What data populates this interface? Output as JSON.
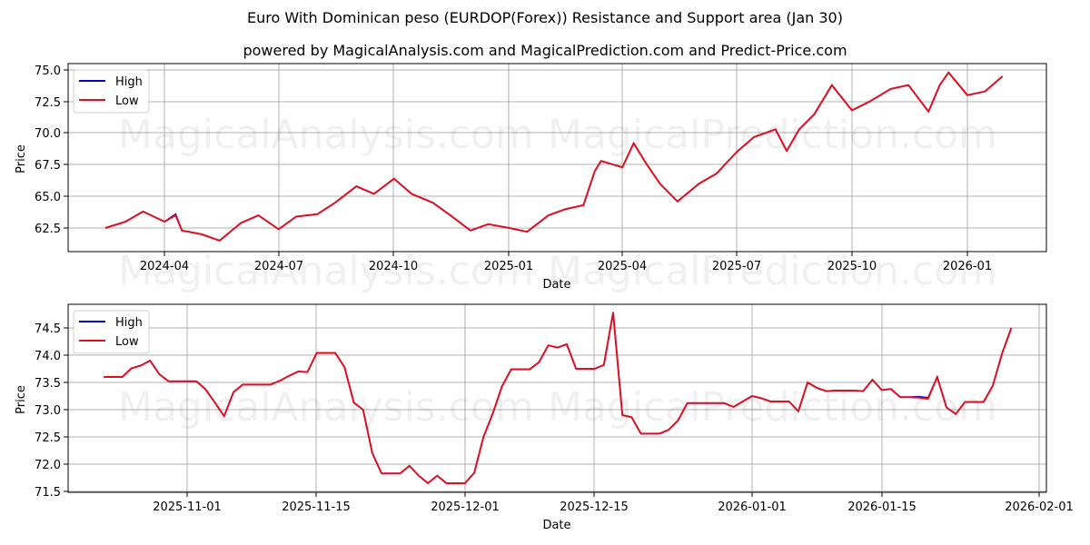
{
  "header": {
    "title": "Euro With Dominican peso (EURDOP(Forex)) Resistance and Support area (Jan 30)",
    "subtitle": "powered by MagicalAnalysis.com and MagicalPrediction.com and Predict-Price.com"
  },
  "watermark": {
    "left": "MagicalAnalysis.com",
    "right": "MagicalPrediction.com"
  },
  "colors": {
    "high": "#0000cc",
    "low": "#dd1122",
    "grid": "#b0b0b0"
  },
  "chart_data": [
    {
      "type": "line",
      "title": "Euro With Dominican peso (EURDOP(Forex)) Resistance and Support area (Jan 30)",
      "xlabel": "Date",
      "ylabel": "Price",
      "ylim": [
        60.6,
        75.5
      ],
      "grid": true,
      "legend_position": "upper left",
      "legend": [
        "High",
        "Low"
      ],
      "x_ticks": [
        "2024-04",
        "2024-07",
        "2024-10",
        "2025-01",
        "2025-04",
        "2025-07",
        "2025-10",
        "2026-01"
      ],
      "y_ticks": [
        "62.5",
        "65.0",
        "67.5",
        "70.0",
        "72.5",
        "75.0"
      ],
      "x": [
        "2024-02-14",
        "2024-03-01",
        "2024-03-15",
        "2024-04-01",
        "2024-04-10",
        "2024-04-15",
        "2024-05-01",
        "2024-05-15",
        "2024-06-01",
        "2024-06-15",
        "2024-07-01",
        "2024-07-15",
        "2024-08-01",
        "2024-08-15",
        "2024-09-01",
        "2024-09-15",
        "2024-10-01",
        "2024-10-15",
        "2024-11-01",
        "2024-11-15",
        "2024-12-01",
        "2024-12-15",
        "2025-01-01",
        "2025-01-15",
        "2025-02-01",
        "2025-02-15",
        "2025-03-01",
        "2025-03-10",
        "2025-03-15",
        "2025-04-01",
        "2025-04-10",
        "2025-04-20",
        "2025-05-01",
        "2025-05-15",
        "2025-06-01",
        "2025-06-15",
        "2025-07-01",
        "2025-07-15",
        "2025-08-01",
        "2025-08-10",
        "2025-08-20",
        "2025-09-01",
        "2025-09-15",
        "2025-10-01",
        "2025-10-15",
        "2025-11-01",
        "2025-11-15",
        "2025-12-01",
        "2025-12-10",
        "2025-12-17",
        "2026-01-01",
        "2026-01-15",
        "2026-01-29"
      ],
      "series": [
        {
          "name": "High",
          "values": [
            62.5,
            63.0,
            63.8,
            63.0,
            63.6,
            62.3,
            62.0,
            61.5,
            62.9,
            63.5,
            62.4,
            63.4,
            63.6,
            64.5,
            65.8,
            65.2,
            66.4,
            65.2,
            64.5,
            63.5,
            62.3,
            62.8,
            62.5,
            62.2,
            63.5,
            64.0,
            64.3,
            67.0,
            67.8,
            67.3,
            69.2,
            67.6,
            66.0,
            64.6,
            66.0,
            66.8,
            68.5,
            69.7,
            70.3,
            68.6,
            70.3,
            71.5,
            73.8,
            71.8,
            72.5,
            73.5,
            73.8,
            71.7,
            73.8,
            74.8,
            73.0,
            73.3,
            74.5
          ]
        },
        {
          "name": "Low",
          "values": [
            62.5,
            63.0,
            63.8,
            63.0,
            63.5,
            62.3,
            62.0,
            61.5,
            62.9,
            63.5,
            62.4,
            63.4,
            63.6,
            64.5,
            65.8,
            65.2,
            66.4,
            65.2,
            64.5,
            63.5,
            62.3,
            62.8,
            62.5,
            62.2,
            63.5,
            64.0,
            64.3,
            67.0,
            67.8,
            67.3,
            69.2,
            67.6,
            66.0,
            64.6,
            66.0,
            66.8,
            68.5,
            69.7,
            70.3,
            68.6,
            70.3,
            71.5,
            73.8,
            71.8,
            72.5,
            73.5,
            73.8,
            71.7,
            73.8,
            74.8,
            73.0,
            73.3,
            74.5
          ]
        }
      ]
    },
    {
      "type": "line",
      "xlabel": "Date",
      "ylabel": "Price",
      "ylim": [
        71.47,
        74.9
      ],
      "grid": true,
      "legend_position": "upper left",
      "legend": [
        "High",
        "Low"
      ],
      "x_ticks": [
        "2025-11-01",
        "2025-11-15",
        "2025-12-01",
        "2025-12-15",
        "2026-01-01",
        "2026-01-15",
        "2026-02-01"
      ],
      "y_ticks": [
        "71.5",
        "72.0",
        "72.5",
        "73.0",
        "73.5",
        "74.0",
        "74.5"
      ],
      "x": [
        "2025-10-23",
        "2025-10-24",
        "2025-10-25",
        "2025-10-26",
        "2025-10-27",
        "2025-10-28",
        "2025-10-29",
        "2025-10-30",
        "2025-10-31",
        "2025-11-01",
        "2025-11-02",
        "2025-11-03",
        "2025-11-04",
        "2025-11-05",
        "2025-11-06",
        "2025-11-07",
        "2025-11-08",
        "2025-11-09",
        "2025-11-10",
        "2025-11-11",
        "2025-11-12",
        "2025-11-13",
        "2025-11-14",
        "2025-11-15",
        "2025-11-16",
        "2025-11-17",
        "2025-11-18",
        "2025-11-19",
        "2025-11-20",
        "2025-11-21",
        "2025-11-22",
        "2025-11-23",
        "2025-11-24",
        "2025-11-25",
        "2025-11-26",
        "2025-11-27",
        "2025-11-28",
        "2025-11-29",
        "2025-11-30",
        "2025-12-01",
        "2025-12-02",
        "2025-12-03",
        "2025-12-04",
        "2025-12-05",
        "2025-12-06",
        "2025-12-07",
        "2025-12-08",
        "2025-12-09",
        "2025-12-10",
        "2025-12-11",
        "2025-12-12",
        "2025-12-13",
        "2025-12-14",
        "2025-12-15",
        "2025-12-16",
        "2025-12-17",
        "2025-12-18",
        "2025-12-19",
        "2025-12-20",
        "2025-12-21",
        "2025-12-22",
        "2025-12-23",
        "2025-12-24",
        "2025-12-25",
        "2025-12-26",
        "2025-12-27",
        "2025-12-28",
        "2025-12-29",
        "2025-12-30",
        "2025-12-31",
        "2026-01-01",
        "2026-01-02",
        "2026-01-03",
        "2026-01-04",
        "2026-01-05",
        "2026-01-06",
        "2026-01-07",
        "2026-01-08",
        "2026-01-09",
        "2026-01-10",
        "2026-01-11",
        "2026-01-12",
        "2026-01-13",
        "2026-01-14",
        "2026-01-15",
        "2026-01-16",
        "2026-01-17",
        "2026-01-18",
        "2026-01-19",
        "2026-01-20",
        "2026-01-21",
        "2026-01-22",
        "2026-01-23",
        "2026-01-24",
        "2026-01-25",
        "2026-01-26",
        "2026-01-27",
        "2026-01-28",
        "2026-01-29"
      ],
      "series": [
        {
          "name": "High",
          "values": [
            73.6,
            73.6,
            73.6,
            73.76,
            73.81,
            73.9,
            73.65,
            73.52,
            73.52,
            73.52,
            73.52,
            73.37,
            73.13,
            72.88,
            73.32,
            73.46,
            73.46,
            73.46,
            73.46,
            73.53,
            73.62,
            73.7,
            73.69,
            74.04,
            74.04,
            74.04,
            73.78,
            73.13,
            73.0,
            72.2,
            71.83,
            71.83,
            71.83,
            71.97,
            71.79,
            71.65,
            71.79,
            71.65,
            71.65,
            71.65,
            71.84,
            72.5,
            72.93,
            73.43,
            73.74,
            73.74,
            73.74,
            73.87,
            74.18,
            74.14,
            74.2,
            73.75,
            73.75,
            73.75,
            73.82,
            74.78,
            72.9,
            72.86,
            72.56,
            72.56,
            72.56,
            72.63,
            72.8,
            73.12,
            73.12,
            73.12,
            73.12,
            73.12,
            73.05,
            73.15,
            73.25,
            73.21,
            73.15,
            73.15,
            73.15,
            72.97,
            73.5,
            73.4,
            73.34,
            73.35,
            73.35,
            73.35,
            73.34,
            73.55,
            73.36,
            73.38,
            73.23,
            73.23,
            73.24,
            73.22,
            73.6,
            73.04,
            72.92,
            73.14,
            73.14,
            73.14,
            73.44,
            74.03,
            74.5
          ]
        },
        {
          "name": "Low",
          "values": [
            73.6,
            73.6,
            73.6,
            73.76,
            73.81,
            73.9,
            73.65,
            73.52,
            73.52,
            73.52,
            73.52,
            73.37,
            73.13,
            72.88,
            73.32,
            73.46,
            73.46,
            73.46,
            73.46,
            73.53,
            73.62,
            73.7,
            73.69,
            74.04,
            74.04,
            74.04,
            73.78,
            73.13,
            73.0,
            72.2,
            71.83,
            71.83,
            71.83,
            71.97,
            71.79,
            71.65,
            71.79,
            71.65,
            71.65,
            71.65,
            71.84,
            72.5,
            72.93,
            73.43,
            73.74,
            73.74,
            73.74,
            73.87,
            74.18,
            74.14,
            74.2,
            73.75,
            73.75,
            73.75,
            73.82,
            74.78,
            72.9,
            72.86,
            72.56,
            72.56,
            72.56,
            72.63,
            72.8,
            73.12,
            73.12,
            73.12,
            73.12,
            73.12,
            73.05,
            73.15,
            73.25,
            73.21,
            73.15,
            73.15,
            73.15,
            72.97,
            73.5,
            73.4,
            73.34,
            73.35,
            73.35,
            73.35,
            73.34,
            73.55,
            73.36,
            73.38,
            73.23,
            73.23,
            73.22,
            73.2,
            73.6,
            73.04,
            72.92,
            73.14,
            73.14,
            73.14,
            73.44,
            74.03,
            74.5
          ]
        }
      ]
    }
  ]
}
